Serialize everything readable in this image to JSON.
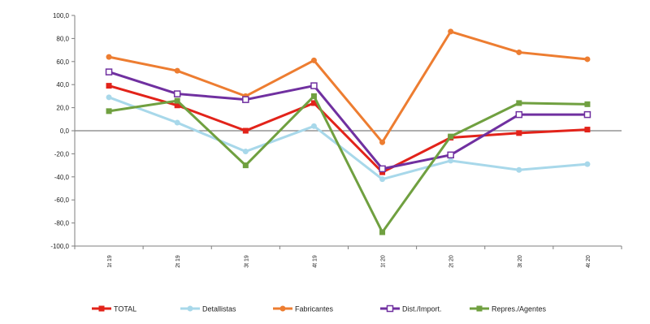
{
  "chart_data": {
    "type": "line",
    "categories": [
      "1t 19",
      "2t 19",
      "3t 19",
      "4t 19",
      "1t 20",
      "2t 20",
      "3t 20",
      "4t 20"
    ],
    "ylim": [
      -100,
      100
    ],
    "yticks": [
      "100,0",
      "80,0",
      "60,0",
      "40,0",
      "20,0",
      "0,0",
      "-20,0",
      "-40,0",
      "-60,0",
      "-80,0",
      "-100,0"
    ],
    "grid": false,
    "zero_line": true,
    "legend_position": "bottom",
    "series": [
      {
        "name": "TOTAL",
        "color": "#e2231a",
        "marker": "square-filled",
        "values": [
          39,
          22,
          0,
          24,
          -36,
          -6,
          -2,
          1
        ]
      },
      {
        "name": "Detallistas",
        "color": "#a8d8ea",
        "marker": "circle-filled",
        "values": [
          29,
          7,
          -18,
          4,
          -42,
          -26,
          -34,
          -29
        ]
      },
      {
        "name": "Fabricantes",
        "color": "#ed7d31",
        "marker": "circle-filled",
        "values": [
          64,
          52,
          30,
          61,
          -10,
          86,
          68,
          62
        ]
      },
      {
        "name": "Dist./Import.",
        "color": "#7030a0",
        "marker": "square-open",
        "values": [
          51,
          32,
          27,
          39,
          -33,
          -21,
          14,
          14
        ]
      },
      {
        "name": "Repres./Agentes",
        "color": "#70a040",
        "marker": "square-filled",
        "values": [
          17,
          26,
          -30,
          30,
          -88,
          -5,
          24,
          23
        ]
      }
    ]
  }
}
